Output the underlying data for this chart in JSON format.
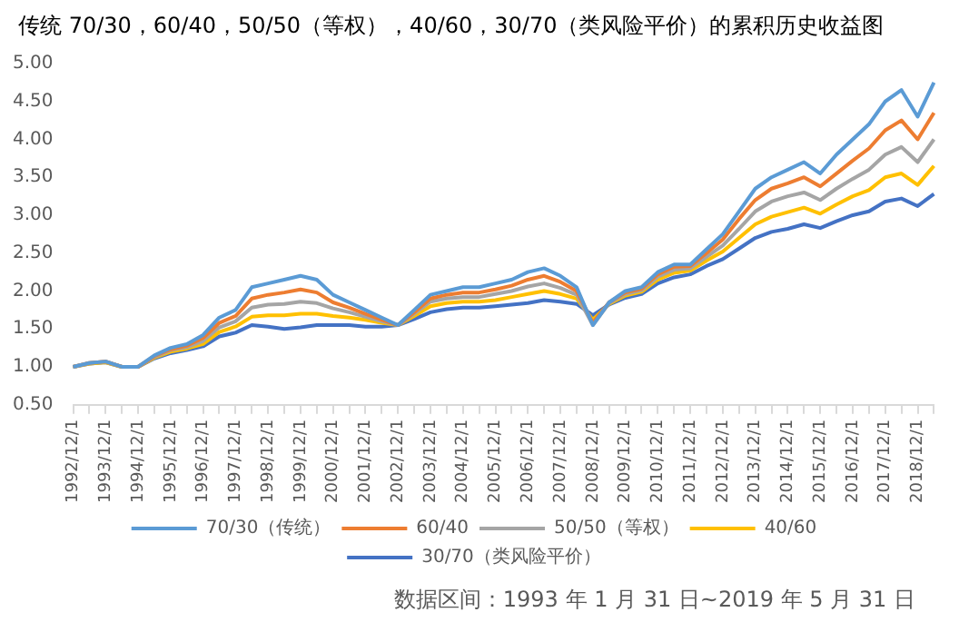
{
  "chart_data": {
    "type": "line",
    "title": "传统 70/30，60/40，50/50（等权），40/60，30/70（类风险平价）的累积历史收益图",
    "annotations": [
      "数据区间：1993 年 1 月 31 日~2019 年 5 月 31 日"
    ],
    "categories": [
      "1992/12/1",
      null,
      "1993/12/1",
      null,
      "1994/12/1",
      null,
      "1995/12/1",
      null,
      "1996/12/1",
      null,
      "1997/12/1",
      null,
      "1998/12/1",
      null,
      "1999/12/1",
      null,
      "2000/12/1",
      null,
      "2001/12/1",
      null,
      "2002/12/1",
      null,
      "2003/12/1",
      null,
      "2004/12/1",
      null,
      "2005/12/1",
      null,
      "2006/12/1",
      null,
      "2007/12/1",
      null,
      "2008/12/1",
      null,
      "2009/12/1",
      null,
      "2010/12/1",
      null,
      "2011/12/1",
      null,
      "2012/12/1",
      null,
      "2013/12/1",
      null,
      "2014/12/1",
      null,
      "2015/12/1",
      null,
      "2016/12/1",
      null,
      "2017/12/1",
      null,
      "2018/12/1",
      null
    ],
    "series": [
      {
        "name": "70/30（传统）",
        "color": "#5b9bd5",
        "values": [
          1.0,
          1.05,
          1.07,
          1.0,
          1.0,
          1.15,
          1.25,
          1.3,
          1.42,
          1.65,
          1.75,
          2.05,
          2.1,
          2.15,
          2.2,
          2.15,
          1.95,
          1.85,
          1.75,
          1.65,
          1.55,
          1.75,
          1.95,
          2.0,
          2.05,
          2.05,
          2.1,
          2.15,
          2.25,
          2.3,
          2.2,
          2.05,
          1.55,
          1.85,
          2.0,
          2.05,
          2.25,
          2.35,
          2.35,
          2.55,
          2.75,
          3.05,
          3.35,
          3.5,
          3.6,
          3.7,
          3.55,
          3.8,
          4.0,
          4.2,
          4.5,
          4.65,
          4.3,
          4.75
        ]
      },
      {
        "name": "60/40",
        "color": "#ed7d31",
        "values": [
          1.0,
          1.05,
          1.07,
          1.0,
          1.0,
          1.14,
          1.23,
          1.28,
          1.38,
          1.58,
          1.67,
          1.9,
          1.95,
          1.98,
          2.02,
          1.98,
          1.85,
          1.78,
          1.7,
          1.62,
          1.55,
          1.72,
          1.9,
          1.95,
          1.98,
          1.98,
          2.02,
          2.07,
          2.15,
          2.2,
          2.12,
          2.0,
          1.58,
          1.85,
          1.98,
          2.03,
          2.22,
          2.32,
          2.33,
          2.5,
          2.68,
          2.95,
          3.2,
          3.35,
          3.42,
          3.5,
          3.38,
          3.55,
          3.72,
          3.88,
          4.12,
          4.25,
          4.0,
          4.35
        ]
      },
      {
        "name": "50/50（等权）",
        "color": "#a5a5a5",
        "values": [
          1.0,
          1.05,
          1.07,
          1.0,
          1.0,
          1.13,
          1.22,
          1.26,
          1.34,
          1.52,
          1.6,
          1.78,
          1.82,
          1.83,
          1.86,
          1.84,
          1.77,
          1.72,
          1.66,
          1.6,
          1.55,
          1.7,
          1.86,
          1.9,
          1.92,
          1.92,
          1.96,
          2.0,
          2.06,
          2.1,
          2.04,
          1.95,
          1.55,
          1.84,
          1.96,
          2.01,
          2.19,
          2.28,
          2.3,
          2.45,
          2.6,
          2.82,
          3.05,
          3.18,
          3.25,
          3.3,
          3.2,
          3.35,
          3.48,
          3.6,
          3.8,
          3.9,
          3.7,
          4.0
        ]
      },
      {
        "name": "40/60",
        "color": "#ffc000",
        "values": [
          1.0,
          1.04,
          1.06,
          1.0,
          1.0,
          1.12,
          1.2,
          1.24,
          1.3,
          1.46,
          1.53,
          1.66,
          1.68,
          1.68,
          1.7,
          1.7,
          1.67,
          1.65,
          1.62,
          1.58,
          1.55,
          1.67,
          1.8,
          1.84,
          1.86,
          1.86,
          1.88,
          1.92,
          1.96,
          2.0,
          1.96,
          1.9,
          1.62,
          1.83,
          1.94,
          1.99,
          2.15,
          2.24,
          2.27,
          2.4,
          2.52,
          2.7,
          2.88,
          2.98,
          3.04,
          3.1,
          3.02,
          3.14,
          3.25,
          3.33,
          3.5,
          3.55,
          3.4,
          3.65
        ]
      },
      {
        "name": "30/70（类风险平价）",
        "color": "#4472c4",
        "values": [
          1.0,
          1.04,
          1.06,
          1.0,
          1.0,
          1.11,
          1.18,
          1.22,
          1.27,
          1.4,
          1.45,
          1.55,
          1.53,
          1.5,
          1.52,
          1.55,
          1.55,
          1.55,
          1.53,
          1.53,
          1.55,
          1.63,
          1.72,
          1.76,
          1.78,
          1.78,
          1.8,
          1.82,
          1.84,
          1.88,
          1.86,
          1.83,
          1.68,
          1.82,
          1.91,
          1.96,
          2.1,
          2.18,
          2.22,
          2.33,
          2.42,
          2.56,
          2.7,
          2.78,
          2.82,
          2.88,
          2.83,
          2.92,
          3.0,
          3.05,
          3.18,
          3.22,
          3.12,
          3.28
        ]
      }
    ],
    "ylim": [
      0.5,
      5
    ],
    "yticks": [
      {
        "value": 0.5,
        "label": "0.50"
      },
      {
        "value": 1,
        "label": "1.00"
      },
      {
        "value": 1.5,
        "label": "1.50"
      },
      {
        "value": 2,
        "label": "2.00"
      },
      {
        "value": 2.5,
        "label": "2.50"
      },
      {
        "value": 3,
        "label": "3.00"
      },
      {
        "value": 3.5,
        "label": "3.50"
      },
      {
        "value": 4,
        "label": "4.00"
      },
      {
        "value": 4.5,
        "label": "4.50"
      },
      {
        "value": 5,
        "label": "5.00"
      }
    ],
    "grid": false,
    "legend": "bottom"
  }
}
